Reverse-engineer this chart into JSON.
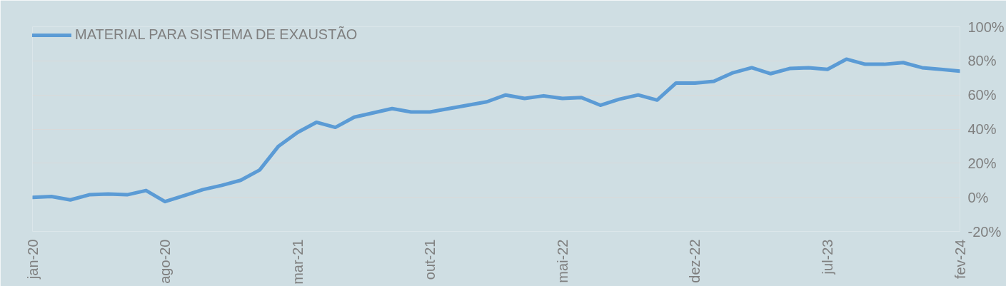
{
  "chart_data": {
    "type": "line",
    "x": [
      "2020-01",
      "2020-02",
      "2020-03",
      "2020-04",
      "2020-05",
      "2020-06",
      "2020-07",
      "2020-08",
      "2020-09",
      "2020-10",
      "2020-11",
      "2020-12",
      "2021-01",
      "2021-02",
      "2021-03",
      "2021-04",
      "2021-05",
      "2021-06",
      "2021-07",
      "2021-08",
      "2021-09",
      "2021-10",
      "2021-11",
      "2021-12",
      "2022-01",
      "2022-02",
      "2022-03",
      "2022-04",
      "2022-05",
      "2022-06",
      "2022-07",
      "2022-08",
      "2022-09",
      "2022-10",
      "2022-11",
      "2022-12",
      "2023-01",
      "2023-02",
      "2023-03",
      "2023-04",
      "2023-05",
      "2023-06",
      "2023-07",
      "2023-08",
      "2023-09",
      "2023-10",
      "2023-11",
      "2023-12",
      "2024-01",
      "2024-02"
    ],
    "series": [
      {
        "name": "MATERIAL PARA SISTEMA DE EXAUSTÃO",
        "color": "#5b9bd5",
        "values": [
          0,
          0.5,
          -1.5,
          1.5,
          2,
          1.5,
          4,
          -2.5,
          1,
          4.5,
          7,
          10,
          16,
          30,
          38,
          44,
          41,
          47,
          49.5,
          52,
          50,
          50,
          52,
          54,
          56,
          60,
          58,
          59.5,
          58,
          58.5,
          54,
          57.5,
          60,
          57,
          67,
          67,
          68,
          73,
          76,
          72.5,
          75.5,
          76,
          75,
          81,
          78,
          78,
          79,
          76,
          75,
          74
        ]
      }
    ],
    "xlim": [
      "2020-01",
      "2024-02"
    ],
    "xticks": [
      {
        "value": "2020-01",
        "label": "jan-20"
      },
      {
        "value": "2020-08",
        "label": "ago-20"
      },
      {
        "value": "2021-03",
        "label": "mar-21"
      },
      {
        "value": "2021-10",
        "label": "out-21"
      },
      {
        "value": "2022-05",
        "label": "mai-22"
      },
      {
        "value": "2022-12",
        "label": "dez-22"
      },
      {
        "value": "2023-07",
        "label": "jul-23"
      },
      {
        "value": "2024-02",
        "label": "fev-24"
      }
    ],
    "ylim": [
      -20,
      100
    ],
    "yticks": [
      {
        "value": -20,
        "label": "-20%"
      },
      {
        "value": 0,
        "label": "0%"
      },
      {
        "value": 20,
        "label": "20%"
      },
      {
        "value": 40,
        "label": "40%"
      },
      {
        "value": 60,
        "label": "60%"
      },
      {
        "value": 80,
        "label": "80%"
      },
      {
        "value": 100,
        "label": "100%"
      }
    ],
    "grid": "y",
    "legend": "top left",
    "line_style": "solid",
    "marker": "none"
  }
}
